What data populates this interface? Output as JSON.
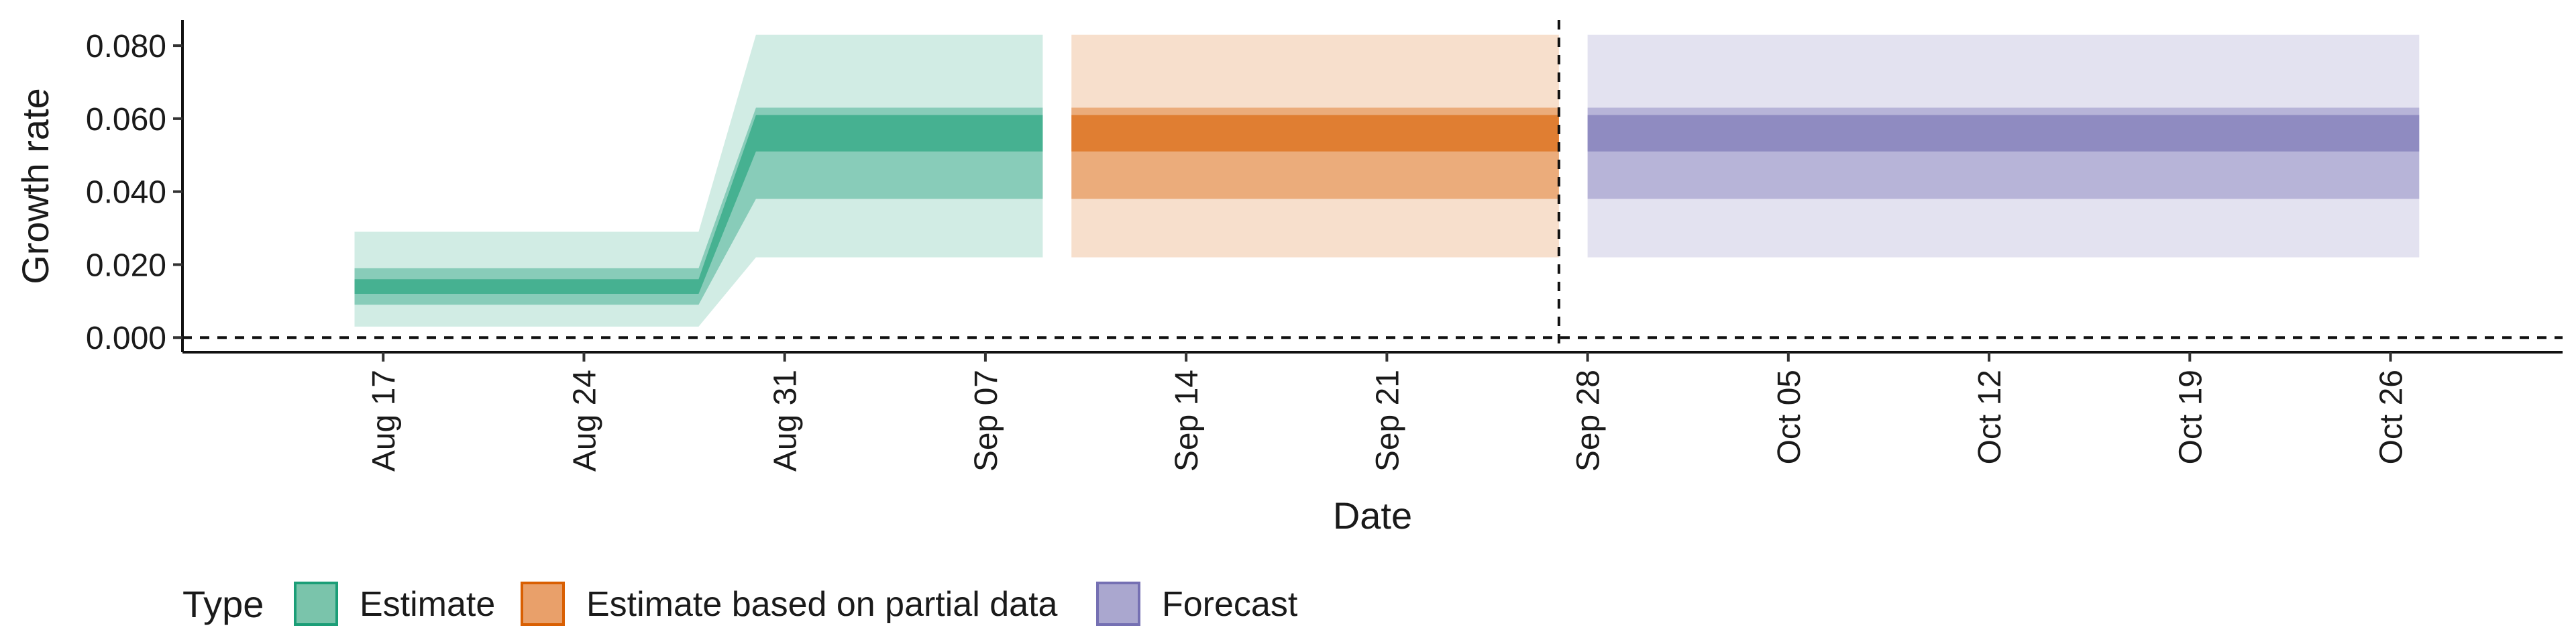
{
  "chart_data": {
    "type": "area",
    "xlabel": "Date",
    "ylabel": "Growth rate",
    "x_ticks": [
      "Aug 17",
      "Aug 24",
      "Aug 31",
      "Sep 07",
      "Sep 14",
      "Sep 21",
      "Sep 28",
      "Oct 05",
      "Oct 12",
      "Oct 19",
      "Oct 26"
    ],
    "y_ticks": [
      "0.000",
      "0.020",
      "0.040",
      "0.060",
      "0.080"
    ],
    "ylim": [
      -0.004,
      0.087
    ],
    "xlim": [
      "2024-08-10",
      "2024-11-01"
    ],
    "year_assumed_for_dates": 2024,
    "reference_lines": {
      "y": 0.0,
      "x": "2024-09-27"
    },
    "legend": {
      "title": "Type",
      "position": "bottom",
      "entries": [
        {
          "label": "Estimate",
          "fill": "#7ac4ab",
          "stroke": "#1b9e77"
        },
        {
          "label": "Estimate based on partial data",
          "fill": "#e9a06a",
          "stroke": "#d95f02"
        },
        {
          "label": "Forecast",
          "fill": "#aaa7cf",
          "stroke": "#7570b3"
        }
      ]
    },
    "series": [
      {
        "name": "Estimate",
        "color": "#1b9e77",
        "points": [
          {
            "date": "2024-08-16",
            "q05": 0.003,
            "q20": 0.009,
            "q35": 0.012,
            "q65": 0.016,
            "q80": 0.019,
            "q95": 0.029
          },
          {
            "date": "2024-08-28",
            "q05": 0.003,
            "q20": 0.009,
            "q35": 0.012,
            "q65": 0.016,
            "q80": 0.019,
            "q95": 0.029
          },
          {
            "date": "2024-08-30",
            "q05": 0.022,
            "q20": 0.038,
            "q35": 0.051,
            "q65": 0.061,
            "q80": 0.063,
            "q95": 0.083
          },
          {
            "date": "2024-09-09",
            "q05": 0.022,
            "q20": 0.038,
            "q35": 0.051,
            "q65": 0.061,
            "q80": 0.063,
            "q95": 0.083
          }
        ]
      },
      {
        "name": "Estimate based on partial data",
        "color": "#d95f02",
        "points": [
          {
            "date": "2024-09-10",
            "q05": 0.022,
            "q20": 0.038,
            "q35": 0.051,
            "q65": 0.061,
            "q80": 0.063,
            "q95": 0.083
          },
          {
            "date": "2024-09-27",
            "q05": 0.022,
            "q20": 0.038,
            "q35": 0.051,
            "q65": 0.061,
            "q80": 0.063,
            "q95": 0.083
          }
        ]
      },
      {
        "name": "Forecast",
        "color": "#7570b3",
        "points": [
          {
            "date": "2024-09-28",
            "q05": 0.022,
            "q20": 0.038,
            "q35": 0.051,
            "q65": 0.061,
            "q80": 0.063,
            "q95": 0.083
          },
          {
            "date": "2024-10-27",
            "q05": 0.022,
            "q20": 0.038,
            "q35": 0.051,
            "q65": 0.061,
            "q80": 0.063,
            "q95": 0.083
          }
        ]
      }
    ],
    "band_opacity": {
      "outer": 0.2,
      "middle": 0.4,
      "inner": 0.6
    },
    "grid": false
  }
}
